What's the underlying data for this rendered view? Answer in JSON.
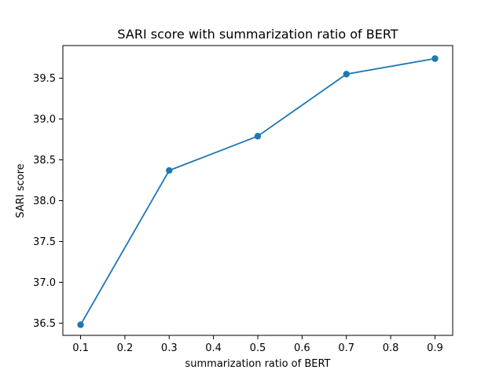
{
  "chart_data": {
    "type": "line",
    "title": "SARI score with summarization ratio of BERT",
    "xlabel": "summarization ratio of BERT",
    "ylabel": "SARI score",
    "x": [
      0.1,
      0.3,
      0.5,
      0.7,
      0.9
    ],
    "series": [
      {
        "values": [
          36.48,
          38.37,
          38.79,
          39.55,
          39.74
        ]
      }
    ],
    "xlim": [
      0.06,
      0.94
    ],
    "ylim": [
      36.35,
      39.9
    ],
    "xticks": [
      "0.1",
      "0.2",
      "0.3",
      "0.4",
      "0.5",
      "0.6",
      "0.7",
      "0.8",
      "0.9"
    ],
    "yticks": [
      "36.5",
      "37.0",
      "37.5",
      "38.0",
      "38.5",
      "39.0",
      "39.5"
    ],
    "grid": false,
    "markers": "circle",
    "line_color": "#1f77b4"
  }
}
